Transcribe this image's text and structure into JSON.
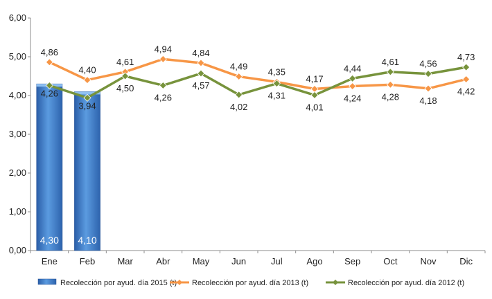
{
  "chart_data": {
    "type": "bar+line",
    "categories": [
      "Ene",
      "Feb",
      "Mar",
      "Abr",
      "May",
      "Jun",
      "Jul",
      "Ago",
      "Sep",
      "Oct",
      "Nov",
      "Dic"
    ],
    "ylim": [
      0,
      6
    ],
    "ytick_labels": [
      "0,00",
      "1,00",
      "2,00",
      "3,00",
      "4,00",
      "5,00",
      "6,00"
    ],
    "grid": false,
    "legend_position": "bottom",
    "series": [
      {
        "name": "Recolección por ayud. día 2015 (t)",
        "kind": "bar",
        "color": "#3a78c6",
        "values": [
          4.3,
          4.1,
          null,
          null,
          null,
          null,
          null,
          null,
          null,
          null,
          null,
          null
        ],
        "labels": [
          "4,30",
          "4,10",
          "",
          "",
          "",
          "",
          "",
          "",
          "",
          "",
          "",
          ""
        ]
      },
      {
        "name": "Recolección por ayud. día 2013 (t)",
        "kind": "line",
        "color": "#f79646",
        "values": [
          4.86,
          4.4,
          4.61,
          4.94,
          4.84,
          4.49,
          4.35,
          4.17,
          4.24,
          4.28,
          4.18,
          4.42
        ],
        "labels": [
          "4,86",
          "4,40",
          "4,61",
          "4,94",
          "4,84",
          "4,49",
          "4,35",
          "4,17",
          "4,24",
          "4,28",
          "4,18",
          "4,42"
        ]
      },
      {
        "name": "Recolección por ayud. día 2012 (t)",
        "kind": "line",
        "color": "#77933c",
        "values": [
          4.26,
          3.94,
          4.5,
          4.26,
          4.57,
          4.02,
          4.31,
          4.01,
          4.44,
          4.61,
          4.56,
          4.73
        ],
        "labels": [
          "4,26",
          "3,94",
          "4,50",
          "4,26",
          "4,57",
          "4,02",
          "4,31",
          "4,01",
          "4,44",
          "4,61",
          "4,56",
          "4,73"
        ]
      }
    ]
  }
}
